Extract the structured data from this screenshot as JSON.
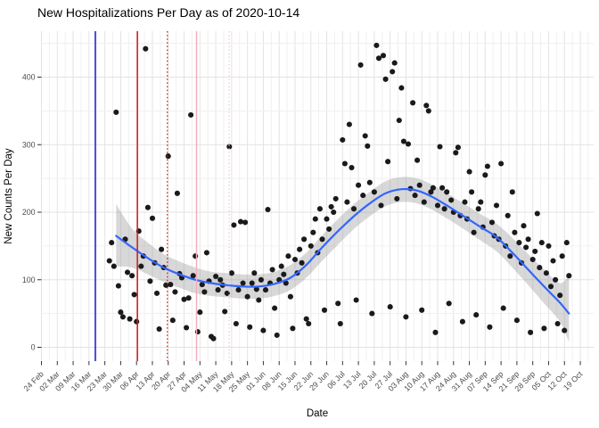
{
  "chart_data": {
    "type": "scatter",
    "title": "New Hospitalizations Per Day as of 2020-10-14",
    "xlabel": "Date",
    "ylabel": "New Counts Per Day",
    "legend": "none",
    "grid": "major+minor, light gray on white",
    "x_day0": "2020-02-24",
    "x_tick_interval_days": 7,
    "x_tick_labels": [
      "24 Feb",
      "02 Mar",
      "09 Mar",
      "16 Mar",
      "23 Mar",
      "30 Mar",
      "06 Apr",
      "13 Apr",
      "20 Apr",
      "27 Apr",
      "04 May",
      "11 May",
      "18 May",
      "25 May",
      "01 Jun",
      "08 Jun",
      "15 Jun",
      "22 Jun",
      "29 Jun",
      "06 Jul",
      "13 Jul",
      "20 Jul",
      "27 Jul",
      "03 Aug",
      "10 Aug",
      "17 Aug",
      "24 Aug",
      "31 Aug",
      "07 Sep",
      "14 Sep",
      "21 Sep",
      "28 Sep",
      "05 Oct",
      "12 Oct",
      "19 Oct"
    ],
    "y_ticks": [
      0,
      100,
      200,
      300,
      400
    ],
    "y_minor_step": 50,
    "ylim": [
      0,
      450
    ],
    "points_unit": "[days_since_2020-02-24, new_counts_per_day]",
    "points": [
      [
        30,
        128
      ],
      [
        31,
        155
      ],
      [
        32,
        120
      ],
      [
        33,
        348
      ],
      [
        34,
        91
      ],
      [
        35,
        52
      ],
      [
        36,
        45
      ],
      [
        37,
        160
      ],
      [
        38,
        111
      ],
      [
        39,
        42
      ],
      [
        40,
        106
      ],
      [
        41,
        78
      ],
      [
        42,
        38
      ],
      [
        43,
        172
      ],
      [
        44,
        120
      ],
      [
        45,
        135
      ],
      [
        46,
        442
      ],
      [
        47,
        207
      ],
      [
        48,
        98
      ],
      [
        49,
        191
      ],
      [
        50,
        125
      ],
      [
        51,
        80
      ],
      [
        52,
        27
      ],
      [
        53,
        145
      ],
      [
        54,
        118
      ],
      [
        55,
        92
      ],
      [
        56,
        283
      ],
      [
        57,
        93
      ],
      [
        58,
        40
      ],
      [
        59,
        82
      ],
      [
        60,
        228
      ],
      [
        61,
        109
      ],
      [
        62,
        103
      ],
      [
        63,
        71
      ],
      [
        64,
        29
      ],
      [
        65,
        73
      ],
      [
        66,
        344
      ],
      [
        67,
        106
      ],
      [
        68,
        135
      ],
      [
        69,
        23
      ],
      [
        70,
        52
      ],
      [
        71,
        93
      ],
      [
        72,
        82
      ],
      [
        73,
        140
      ],
      [
        74,
        98
      ],
      [
        75,
        16
      ],
      [
        76,
        13
      ],
      [
        77,
        105
      ],
      [
        78,
        85
      ],
      [
        79,
        100
      ],
      [
        80,
        92
      ],
      [
        81,
        53
      ],
      [
        82,
        80
      ],
      [
        83,
        297
      ],
      [
        84,
        110
      ],
      [
        85,
        181
      ],
      [
        86,
        35
      ],
      [
        87,
        85
      ],
      [
        88,
        186
      ],
      [
        89,
        95
      ],
      [
        90,
        185
      ],
      [
        91,
        75
      ],
      [
        92,
        30
      ],
      [
        93,
        95
      ],
      [
        94,
        110
      ],
      [
        95,
        86
      ],
      [
        96,
        70
      ],
      [
        97,
        100
      ],
      [
        98,
        25
      ],
      [
        99,
        85
      ],
      [
        100,
        204
      ],
      [
        101,
        95
      ],
      [
        102,
        115
      ],
      [
        103,
        58
      ],
      [
        104,
        18
      ],
      [
        105,
        100
      ],
      [
        106,
        120
      ],
      [
        107,
        108
      ],
      [
        108,
        95
      ],
      [
        109,
        135
      ],
      [
        110,
        75
      ],
      [
        111,
        28
      ],
      [
        112,
        130
      ],
      [
        113,
        110
      ],
      [
        114,
        145
      ],
      [
        115,
        125
      ],
      [
        116,
        160
      ],
      [
        117,
        42
      ],
      [
        118,
        35
      ],
      [
        119,
        150
      ],
      [
        120,
        170
      ],
      [
        121,
        190
      ],
      [
        122,
        140
      ],
      [
        123,
        205
      ],
      [
        124,
        160
      ],
      [
        125,
        55
      ],
      [
        126,
        190
      ],
      [
        127,
        175
      ],
      [
        128,
        208
      ],
      [
        129,
        200
      ],
      [
        130,
        220
      ],
      [
        131,
        65
      ],
      [
        132,
        35
      ],
      [
        133,
        307
      ],
      [
        134,
        272
      ],
      [
        135,
        215
      ],
      [
        136,
        330
      ],
      [
        137,
        266
      ],
      [
        138,
        205
      ],
      [
        139,
        70
      ],
      [
        140,
        240
      ],
      [
        141,
        418
      ],
      [
        142,
        225
      ],
      [
        143,
        313
      ],
      [
        144,
        298
      ],
      [
        145,
        244
      ],
      [
        146,
        50
      ],
      [
        147,
        230
      ],
      [
        148,
        447
      ],
      [
        149,
        428
      ],
      [
        150,
        210
      ],
      [
        151,
        432
      ],
      [
        152,
        397
      ],
      [
        153,
        275
      ],
      [
        154,
        60
      ],
      [
        155,
        408
      ],
      [
        156,
        421
      ],
      [
        157,
        220
      ],
      [
        158,
        336
      ],
      [
        159,
        384
      ],
      [
        160,
        305
      ],
      [
        161,
        45
      ],
      [
        162,
        301
      ],
      [
        163,
        235
      ],
      [
        164,
        362
      ],
      [
        165,
        225
      ],
      [
        166,
        277
      ],
      [
        167,
        240
      ],
      [
        168,
        55
      ],
      [
        169,
        215
      ],
      [
        170,
        358
      ],
      [
        171,
        350
      ],
      [
        172,
        230
      ],
      [
        173,
        236
      ],
      [
        174,
        22
      ],
      [
        175,
        210
      ],
      [
        176,
        297
      ],
      [
        177,
        236
      ],
      [
        178,
        205
      ],
      [
        179,
        230
      ],
      [
        180,
        65
      ],
      [
        181,
        218
      ],
      [
        182,
        200
      ],
      [
        183,
        288
      ],
      [
        184,
        296
      ],
      [
        185,
        195
      ],
      [
        186,
        38
      ],
      [
        187,
        215
      ],
      [
        188,
        190
      ],
      [
        189,
        260
      ],
      [
        190,
        230
      ],
      [
        191,
        170
      ],
      [
        192,
        48
      ],
      [
        193,
        205
      ],
      [
        194,
        215
      ],
      [
        195,
        178
      ],
      [
        196,
        255
      ],
      [
        197,
        268
      ],
      [
        198,
        30
      ],
      [
        199,
        185
      ],
      [
        200,
        165
      ],
      [
        201,
        210
      ],
      [
        202,
        160
      ],
      [
        203,
        272
      ],
      [
        204,
        58
      ],
      [
        205,
        150
      ],
      [
        206,
        195
      ],
      [
        207,
        135
      ],
      [
        208,
        230
      ],
      [
        209,
        170
      ],
      [
        210,
        40
      ],
      [
        211,
        155
      ],
      [
        212,
        125
      ],
      [
        213,
        180
      ],
      [
        214,
        148
      ],
      [
        215,
        160
      ],
      [
        216,
        22
      ],
      [
        217,
        130
      ],
      [
        218,
        142
      ],
      [
        219,
        198
      ],
      [
        220,
        118
      ],
      [
        221,
        155
      ],
      [
        222,
        28
      ],
      [
        223,
        110
      ],
      [
        224,
        150
      ],
      [
        225,
        90
      ],
      [
        226,
        128
      ],
      [
        227,
        100
      ],
      [
        228,
        35
      ],
      [
        229,
        77
      ],
      [
        230,
        135
      ],
      [
        231,
        25
      ],
      [
        232,
        155
      ],
      [
        233,
        106
      ]
    ],
    "smooth_line": {
      "label": "loess fit",
      "points": [
        [
          33,
          165
        ],
        [
          40,
          148
        ],
        [
          47,
          132
        ],
        [
          54,
          118
        ],
        [
          61,
          108
        ],
        [
          68,
          100
        ],
        [
          75,
          95
        ],
        [
          82,
          92
        ],
        [
          89,
          90
        ],
        [
          96,
          90
        ],
        [
          103,
          94
        ],
        [
          110,
          103
        ],
        [
          117,
          122
        ],
        [
          124,
          148
        ],
        [
          131,
          172
        ],
        [
          138,
          194
        ],
        [
          145,
          213
        ],
        [
          152,
          228
        ],
        [
          159,
          234
        ],
        [
          166,
          232
        ],
        [
          173,
          222
        ],
        [
          180,
          208
        ],
        [
          187,
          193
        ],
        [
          194,
          178
        ],
        [
          201,
          163
        ],
        [
          208,
          140
        ],
        [
          215,
          115
        ],
        [
          222,
          90
        ],
        [
          229,
          66
        ],
        [
          233,
          50
        ]
      ]
    },
    "confidence_ribbon": {
      "band": [
        [
          33,
          120,
          212
        ],
        [
          40,
          118,
          176
        ],
        [
          47,
          108,
          155
        ],
        [
          54,
          97,
          138
        ],
        [
          61,
          88,
          127
        ],
        [
          68,
          80,
          118
        ],
        [
          75,
          76,
          112
        ],
        [
          82,
          74,
          110
        ],
        [
          89,
          72,
          108
        ],
        [
          96,
          72,
          108
        ],
        [
          103,
          76,
          112
        ],
        [
          110,
          85,
          122
        ],
        [
          117,
          103,
          140
        ],
        [
          124,
          128,
          166
        ],
        [
          131,
          152,
          190
        ],
        [
          138,
          175,
          212
        ],
        [
          145,
          194,
          230
        ],
        [
          152,
          209,
          246
        ],
        [
          159,
          215,
          252
        ],
        [
          166,
          213,
          250
        ],
        [
          173,
          203,
          240
        ],
        [
          180,
          189,
          226
        ],
        [
          187,
          174,
          212
        ],
        [
          194,
          158,
          197
        ],
        [
          201,
          142,
          183
        ],
        [
          208,
          118,
          162
        ],
        [
          215,
          92,
          138
        ],
        [
          222,
          65,
          115
        ],
        [
          229,
          38,
          95
        ],
        [
          233,
          8,
          108
        ]
      ]
    },
    "event_vlines": [
      {
        "name": "vline-blue-solid",
        "day": 23.8,
        "date_est": "2020-03-19",
        "color": "#1515d0",
        "style": "solid",
        "width": 1.5
      },
      {
        "name": "vline-red-solid",
        "day": 42.4,
        "date_est": "2020-04-07",
        "color": "#e01717",
        "style": "solid",
        "width": 1.5
      },
      {
        "name": "vline-red-dotted",
        "day": 55.6,
        "date_est": "2020-04-20",
        "color": "#e01717",
        "style": "dotted",
        "width": 1.3
      },
      {
        "name": "vline-pink-solid",
        "day": 68.5,
        "date_est": "2020-05-03",
        "color": "#f5aebd",
        "style": "solid",
        "width": 1.5
      },
      {
        "name": "vline-pink-dotted",
        "day": 82.9,
        "date_est": "2020-05-17",
        "color": "#f4c3ce",
        "style": "dotted",
        "width": 1.2
      }
    ],
    "colors": {
      "point": "#1a1a1a",
      "smooth": "#3366ff",
      "ribbon": "#999999",
      "ribbon_opacity": 0.38,
      "grid_major": "#e3e3e3",
      "grid_minor": "#f0f0f0",
      "tick_mark": "#333333",
      "tick_label": "#4d4d4d",
      "title": "#000000",
      "background": "#ffffff"
    }
  }
}
